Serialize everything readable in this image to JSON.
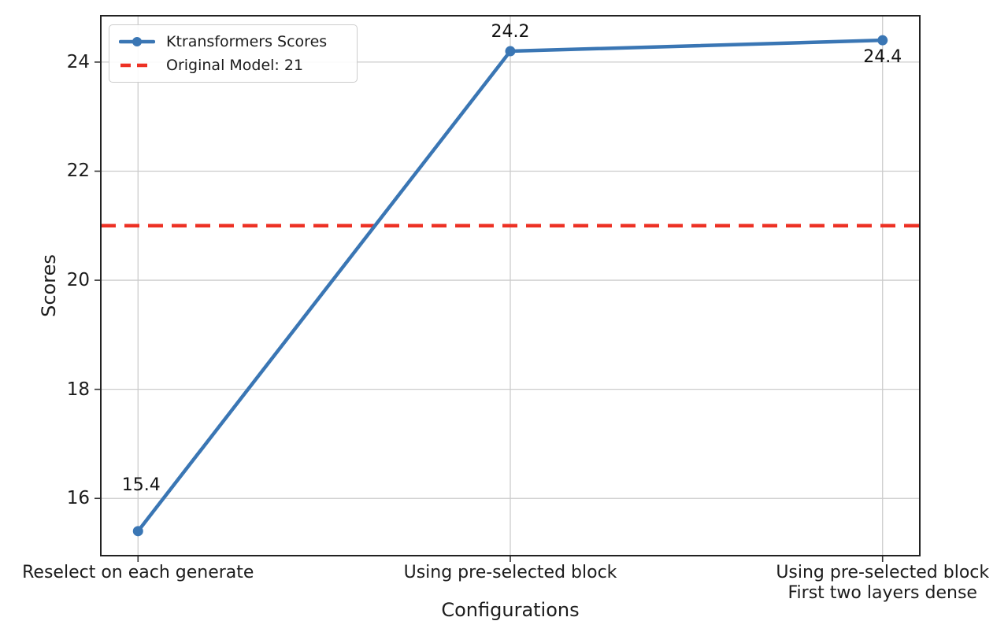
{
  "chart_data": {
    "type": "line",
    "title": "",
    "xlabel": "Configurations",
    "ylabel": "Scores",
    "categories": [
      "Reselect on each generate",
      "Using pre-selected block",
      "Using pre-selected block\nFirst two layers dense"
    ],
    "series": [
      {
        "name": "Ktransformers Scores",
        "values": [
          15.4,
          24.2,
          24.4
        ],
        "color": "#3a76b4",
        "marker": "circle",
        "line_style": "solid"
      }
    ],
    "reference_line": {
      "name": "Original Model: 21",
      "value": 21,
      "color": "#ed3124",
      "line_style": "dashed"
    },
    "point_labels": [
      "15.4",
      "24.2",
      "24.4"
    ],
    "yticks": [
      "16",
      "18",
      "20",
      "22",
      "24"
    ],
    "ytick_values": [
      16,
      18,
      20,
      22,
      24
    ],
    "ylim": [
      14.95,
      24.85
    ],
    "grid": true,
    "grid_color": "#cccccc",
    "spine_color": "#222222",
    "tick_color": "#333333",
    "legend_position": "upper-left"
  }
}
